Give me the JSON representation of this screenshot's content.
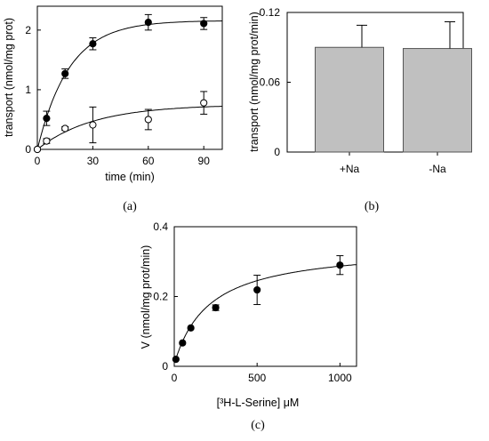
{
  "chart_data": [
    {
      "panel": "(a)",
      "type": "scatter",
      "xlabel": "time (min)",
      "ylabel": "transport (nmol/mg prot)",
      "xlim": [
        0,
        100
      ],
      "ylim": [
        0,
        2.4
      ],
      "xticks": [
        0,
        30,
        60,
        90
      ],
      "yticks": [
        0,
        1,
        2
      ],
      "series": [
        {
          "marker": "filled",
          "x": [
            0,
            5,
            15,
            30,
            60,
            90
          ],
          "y": [
            0,
            0.52,
            1.27,
            1.77,
            2.13,
            2.11
          ],
          "err": [
            0,
            0.12,
            0.08,
            0.1,
            0.13,
            0.1
          ],
          "fit": {
            "vmax": 2.16,
            "k": 0.058
          }
        },
        {
          "marker": "open",
          "x": [
            0,
            5,
            15,
            30,
            60,
            90
          ],
          "y": [
            0,
            0.14,
            0.35,
            0.41,
            0.5,
            0.78
          ],
          "err": [
            0,
            0.04,
            0.03,
            0.3,
            0.17,
            0.19
          ],
          "fit": {
            "vmax": 0.75,
            "k": 0.033
          }
        }
      ],
      "grid": false
    },
    {
      "panel": "(b)",
      "type": "bar",
      "categories": [
        "+Na",
        "-Na"
      ],
      "values": [
        0.09,
        0.089
      ],
      "err": [
        0.019,
        0.023
      ],
      "ylabel": "transport (nmol/mg prot/min)",
      "ylim": [
        0,
        0.12
      ],
      "yticks": [
        "0",
        "0.06",
        "0.12"
      ],
      "bar_color": "#c0c0c0",
      "grid": false
    },
    {
      "panel": "(c)",
      "type": "scatter",
      "xlabel": "[³H-L-Serine] μM",
      "ylabel": "V (nmol/mg prot/min)",
      "xlim": [
        0,
        1100
      ],
      "ylim": [
        0,
        0.4
      ],
      "xticks": [
        0,
        500,
        1000
      ],
      "yticks": [
        "0",
        "0.2",
        "0.4"
      ],
      "series": [
        {
          "marker": "filled",
          "x": [
            10,
            50,
            100,
            250,
            500,
            1000
          ],
          "y": [
            0.02,
            0.067,
            0.11,
            0.168,
            0.219,
            0.29
          ],
          "err": [
            0,
            0,
            0,
            0.008,
            0.042,
            0.027
          ],
          "fit": {
            "vmax": 0.34,
            "km": 210,
            "c": 0.006
          }
        }
      ],
      "grid": false
    }
  ]
}
